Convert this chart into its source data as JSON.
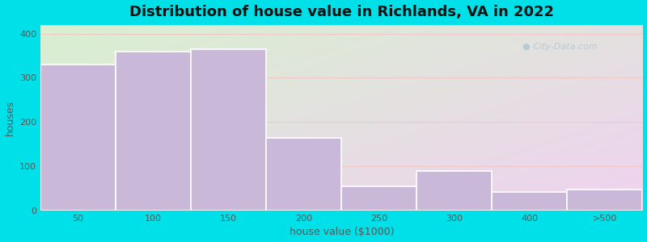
{
  "title": "Distribution of house value in Richlands, VA in 2022",
  "xlabel": "house value ($1000)",
  "ylabel": "houses",
  "bar_labels": [
    "50",
    "100",
    "150",
    "200",
    "250",
    "300",
    "400",
    ">500"
  ],
  "bar_values": [
    330,
    360,
    365,
    165,
    55,
    90,
    42,
    48
  ],
  "bar_color": "#c9b8d8",
  "bar_edge_color": "#ffffff",
  "ylim": [
    0,
    420
  ],
  "yticks": [
    0,
    100,
    200,
    300,
    400
  ],
  "bg_outer": "#00e0e8",
  "bg_grad_topleft": "#d8f0d0",
  "bg_grad_bottomright": "#e8e0f0",
  "grid_color": "#f0c8c8",
  "title_fontsize": 13,
  "axis_fontsize": 9,
  "tick_fontsize": 8,
  "watermark_text": "City-Data.com",
  "watermark_color": "#b0c8d0"
}
